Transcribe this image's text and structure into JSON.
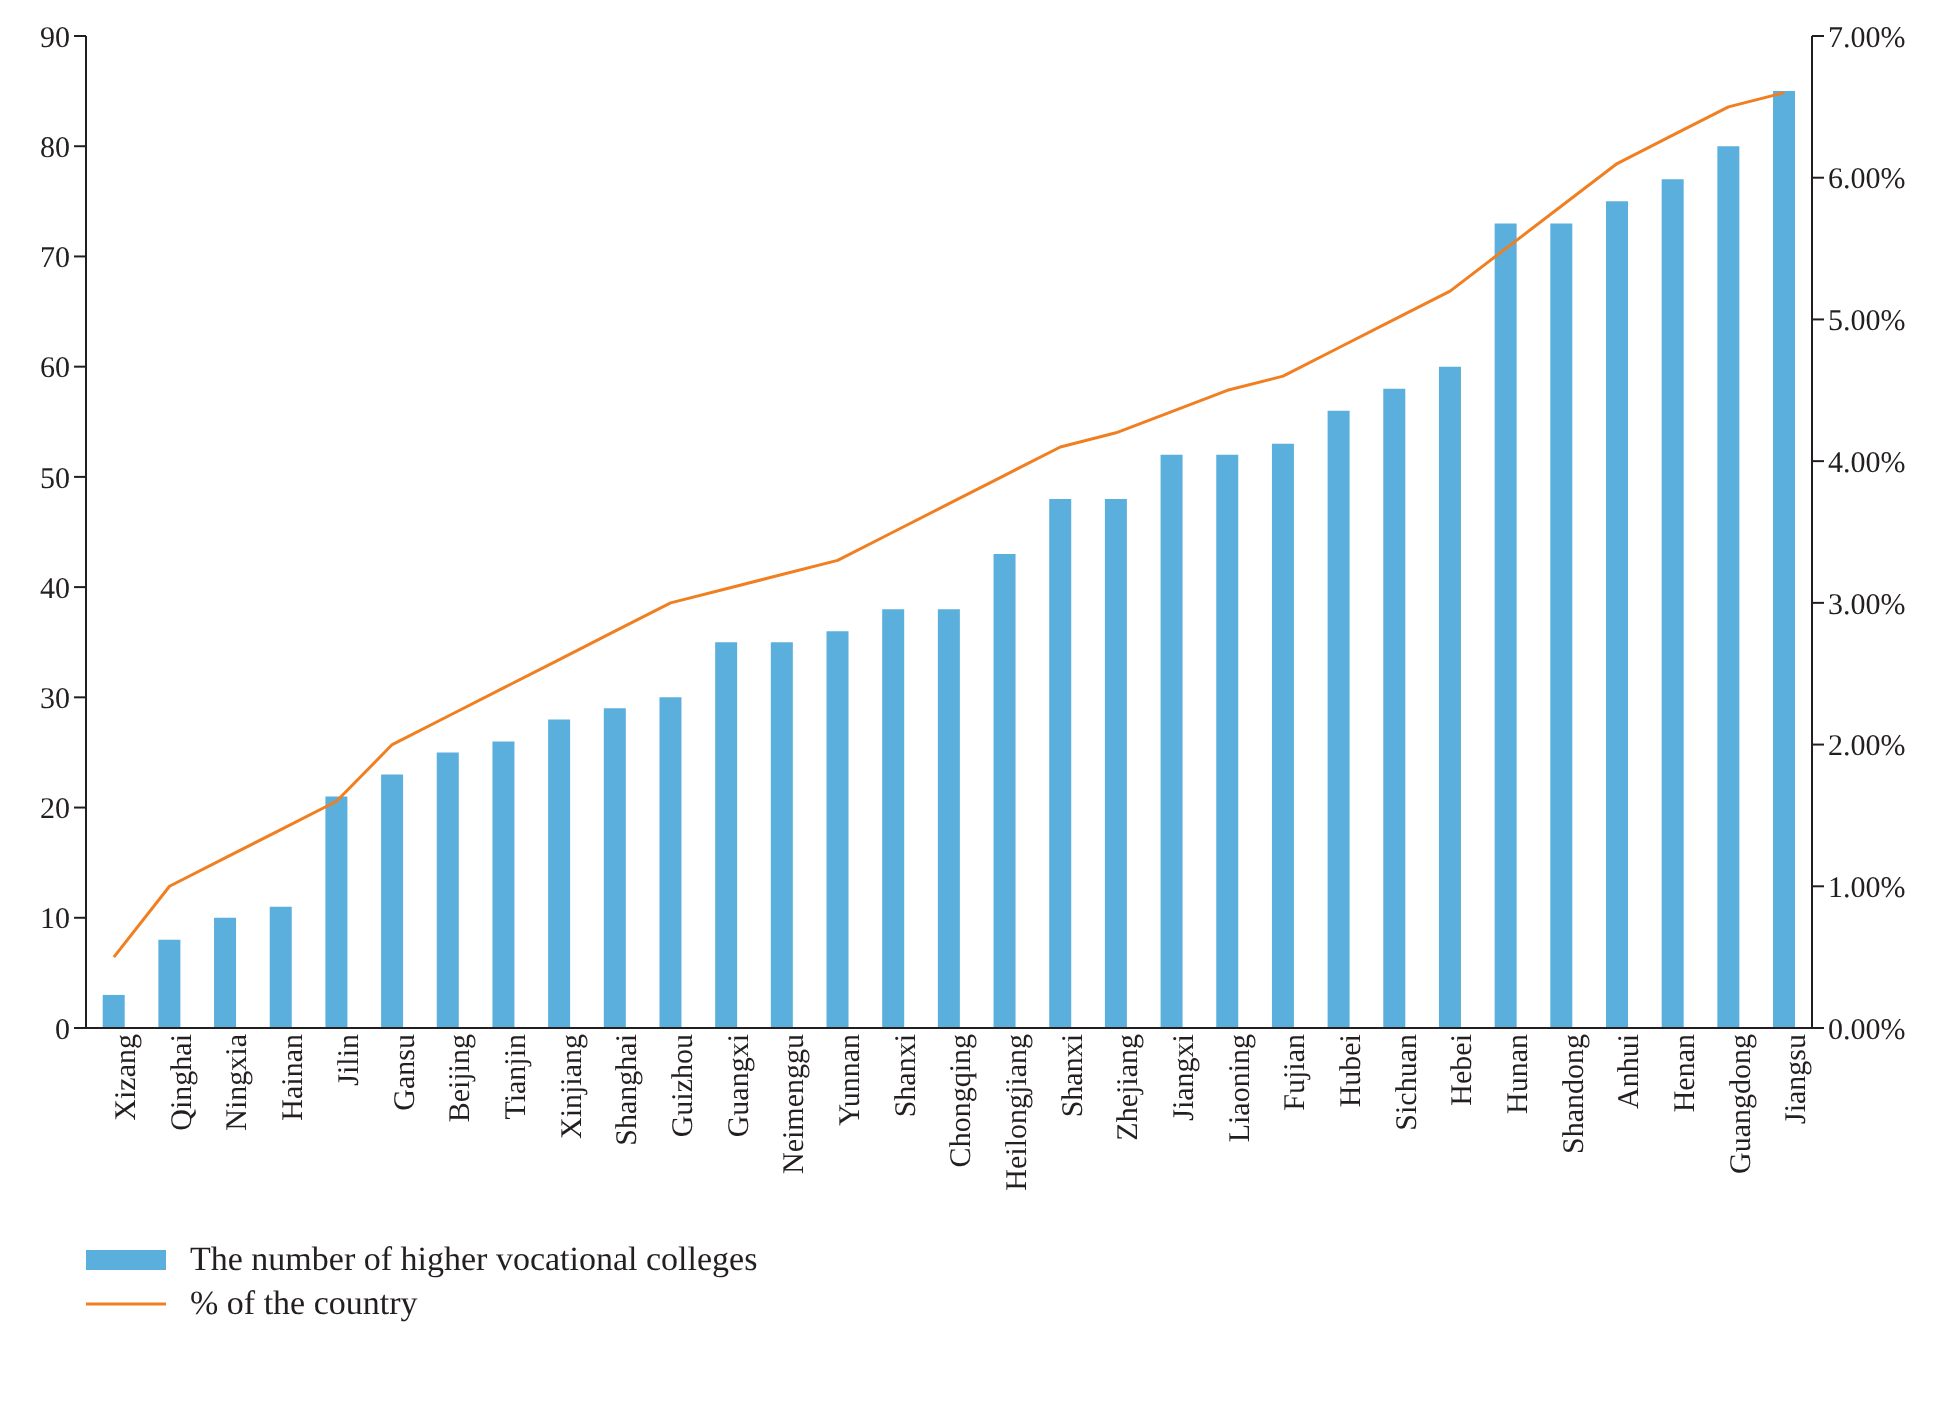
{
  "chart_data": {
    "type": "bar",
    "categories": [
      "Xizang",
      "Qinghai",
      "Ningxia",
      "Hainan",
      "Jilin",
      "Gansu",
      "Beijing",
      "Tianjin",
      "Xinjiang",
      "Shanghai",
      "Guizhou",
      "Guangxi",
      "Neimenggu",
      "Yunnan",
      "Shanxi",
      "Chongqing",
      "Heilongjiang",
      "Shanxi",
      "Zhejiang",
      "Jiangxi",
      "Liaoning",
      "Fujian",
      "Hubei",
      "Sichuan",
      "Hebei",
      "Hunan",
      "Shandong",
      "Anhui",
      "Henan",
      "Guangdong",
      "Jiangsu"
    ],
    "series": [
      {
        "name": "The number of higher vocational colleges",
        "color": "#5aafdc",
        "values": [
          3,
          8,
          10,
          11,
          21,
          23,
          25,
          26,
          28,
          29,
          30,
          35,
          35,
          36,
          38,
          38,
          43,
          48,
          48,
          52,
          52,
          53,
          56,
          58,
          60,
          73,
          73,
          75,
          77,
          80,
          85
        ]
      },
      {
        "name": "% of the country",
        "type": "line",
        "axis": "y2",
        "color": "#f07f22",
        "values": [
          0.5,
          1.0,
          1.2,
          1.4,
          1.6,
          2.0,
          2.2,
          2.4,
          2.6,
          2.8,
          3.0,
          3.1,
          3.2,
          3.3,
          3.5,
          3.7,
          3.9,
          4.1,
          4.2,
          4.35,
          4.5,
          4.6,
          4.8,
          5.0,
          5.2,
          5.5,
          5.8,
          6.1,
          6.3,
          6.5,
          6.6
        ]
      }
    ],
    "ylim": [
      0,
      90
    ],
    "yticks": [
      0,
      10,
      20,
      30,
      40,
      50,
      60,
      70,
      80,
      90
    ],
    "y2lim": [
      0,
      7
    ],
    "y2ticks": [
      {
        "value": 0,
        "label": "0.00%"
      },
      {
        "value": 1,
        "label": "1.00%"
      },
      {
        "value": 2,
        "label": "2.00%"
      },
      {
        "value": 3,
        "label": "3.00%"
      },
      {
        "value": 4,
        "label": "4.00%"
      },
      {
        "value": 5,
        "label": "5.00%"
      },
      {
        "value": 6,
        "label": "6.00%"
      },
      {
        "value": 7,
        "label": "7.00%"
      }
    ],
    "legend": "bottom left",
    "grid": false
  }
}
